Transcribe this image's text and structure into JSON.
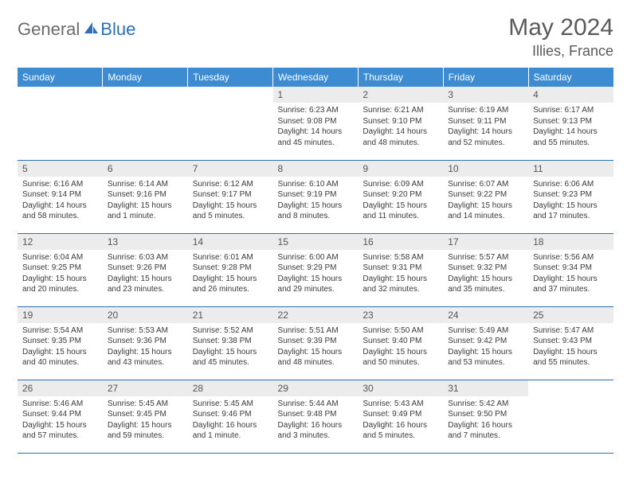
{
  "brand": {
    "general": "General",
    "blue": "Blue"
  },
  "title": "May 2024",
  "location": "Illies, France",
  "colors": {
    "header_bg": "#3d8cd1",
    "header_text": "#ffffff",
    "rule": "#2d6fb5",
    "daynum_bg": "#ececec",
    "text": "#3a3a3a",
    "title_text": "#5a5a5a",
    "logo_gray": "#6b6b6b",
    "logo_blue": "#2d6fb5",
    "background": "#ffffff"
  },
  "typography": {
    "month_title_pt": 30,
    "location_pt": 18,
    "dow_pt": 12,
    "daynum_pt": 12,
    "body_pt": 10
  },
  "days_of_week": [
    "Sunday",
    "Monday",
    "Tuesday",
    "Wednesday",
    "Thursday",
    "Friday",
    "Saturday"
  ],
  "weeks": [
    [
      null,
      null,
      null,
      {
        "n": "1",
        "sr": "Sunrise: 6:23 AM",
        "ss": "Sunset: 9:08 PM",
        "d1": "Daylight: 14 hours",
        "d2": "and 45 minutes."
      },
      {
        "n": "2",
        "sr": "Sunrise: 6:21 AM",
        "ss": "Sunset: 9:10 PM",
        "d1": "Daylight: 14 hours",
        "d2": "and 48 minutes."
      },
      {
        "n": "3",
        "sr": "Sunrise: 6:19 AM",
        "ss": "Sunset: 9:11 PM",
        "d1": "Daylight: 14 hours",
        "d2": "and 52 minutes."
      },
      {
        "n": "4",
        "sr": "Sunrise: 6:17 AM",
        "ss": "Sunset: 9:13 PM",
        "d1": "Daylight: 14 hours",
        "d2": "and 55 minutes."
      }
    ],
    [
      {
        "n": "5",
        "sr": "Sunrise: 6:16 AM",
        "ss": "Sunset: 9:14 PM",
        "d1": "Daylight: 14 hours",
        "d2": "and 58 minutes."
      },
      {
        "n": "6",
        "sr": "Sunrise: 6:14 AM",
        "ss": "Sunset: 9:16 PM",
        "d1": "Daylight: 15 hours",
        "d2": "and 1 minute."
      },
      {
        "n": "7",
        "sr": "Sunrise: 6:12 AM",
        "ss": "Sunset: 9:17 PM",
        "d1": "Daylight: 15 hours",
        "d2": "and 5 minutes."
      },
      {
        "n": "8",
        "sr": "Sunrise: 6:10 AM",
        "ss": "Sunset: 9:19 PM",
        "d1": "Daylight: 15 hours",
        "d2": "and 8 minutes."
      },
      {
        "n": "9",
        "sr": "Sunrise: 6:09 AM",
        "ss": "Sunset: 9:20 PM",
        "d1": "Daylight: 15 hours",
        "d2": "and 11 minutes."
      },
      {
        "n": "10",
        "sr": "Sunrise: 6:07 AM",
        "ss": "Sunset: 9:22 PM",
        "d1": "Daylight: 15 hours",
        "d2": "and 14 minutes."
      },
      {
        "n": "11",
        "sr": "Sunrise: 6:06 AM",
        "ss": "Sunset: 9:23 PM",
        "d1": "Daylight: 15 hours",
        "d2": "and 17 minutes."
      }
    ],
    [
      {
        "n": "12",
        "sr": "Sunrise: 6:04 AM",
        "ss": "Sunset: 9:25 PM",
        "d1": "Daylight: 15 hours",
        "d2": "and 20 minutes."
      },
      {
        "n": "13",
        "sr": "Sunrise: 6:03 AM",
        "ss": "Sunset: 9:26 PM",
        "d1": "Daylight: 15 hours",
        "d2": "and 23 minutes."
      },
      {
        "n": "14",
        "sr": "Sunrise: 6:01 AM",
        "ss": "Sunset: 9:28 PM",
        "d1": "Daylight: 15 hours",
        "d2": "and 26 minutes."
      },
      {
        "n": "15",
        "sr": "Sunrise: 6:00 AM",
        "ss": "Sunset: 9:29 PM",
        "d1": "Daylight: 15 hours",
        "d2": "and 29 minutes."
      },
      {
        "n": "16",
        "sr": "Sunrise: 5:58 AM",
        "ss": "Sunset: 9:31 PM",
        "d1": "Daylight: 15 hours",
        "d2": "and 32 minutes."
      },
      {
        "n": "17",
        "sr": "Sunrise: 5:57 AM",
        "ss": "Sunset: 9:32 PM",
        "d1": "Daylight: 15 hours",
        "d2": "and 35 minutes."
      },
      {
        "n": "18",
        "sr": "Sunrise: 5:56 AM",
        "ss": "Sunset: 9:34 PM",
        "d1": "Daylight: 15 hours",
        "d2": "and 37 minutes."
      }
    ],
    [
      {
        "n": "19",
        "sr": "Sunrise: 5:54 AM",
        "ss": "Sunset: 9:35 PM",
        "d1": "Daylight: 15 hours",
        "d2": "and 40 minutes."
      },
      {
        "n": "20",
        "sr": "Sunrise: 5:53 AM",
        "ss": "Sunset: 9:36 PM",
        "d1": "Daylight: 15 hours",
        "d2": "and 43 minutes."
      },
      {
        "n": "21",
        "sr": "Sunrise: 5:52 AM",
        "ss": "Sunset: 9:38 PM",
        "d1": "Daylight: 15 hours",
        "d2": "and 45 minutes."
      },
      {
        "n": "22",
        "sr": "Sunrise: 5:51 AM",
        "ss": "Sunset: 9:39 PM",
        "d1": "Daylight: 15 hours",
        "d2": "and 48 minutes."
      },
      {
        "n": "23",
        "sr": "Sunrise: 5:50 AM",
        "ss": "Sunset: 9:40 PM",
        "d1": "Daylight: 15 hours",
        "d2": "and 50 minutes."
      },
      {
        "n": "24",
        "sr": "Sunrise: 5:49 AM",
        "ss": "Sunset: 9:42 PM",
        "d1": "Daylight: 15 hours",
        "d2": "and 53 minutes."
      },
      {
        "n": "25",
        "sr": "Sunrise: 5:47 AM",
        "ss": "Sunset: 9:43 PM",
        "d1": "Daylight: 15 hours",
        "d2": "and 55 minutes."
      }
    ],
    [
      {
        "n": "26",
        "sr": "Sunrise: 5:46 AM",
        "ss": "Sunset: 9:44 PM",
        "d1": "Daylight: 15 hours",
        "d2": "and 57 minutes."
      },
      {
        "n": "27",
        "sr": "Sunrise: 5:45 AM",
        "ss": "Sunset: 9:45 PM",
        "d1": "Daylight: 15 hours",
        "d2": "and 59 minutes."
      },
      {
        "n": "28",
        "sr": "Sunrise: 5:45 AM",
        "ss": "Sunset: 9:46 PM",
        "d1": "Daylight: 16 hours",
        "d2": "and 1 minute."
      },
      {
        "n": "29",
        "sr": "Sunrise: 5:44 AM",
        "ss": "Sunset: 9:48 PM",
        "d1": "Daylight: 16 hours",
        "d2": "and 3 minutes."
      },
      {
        "n": "30",
        "sr": "Sunrise: 5:43 AM",
        "ss": "Sunset: 9:49 PM",
        "d1": "Daylight: 16 hours",
        "d2": "and 5 minutes."
      },
      {
        "n": "31",
        "sr": "Sunrise: 5:42 AM",
        "ss": "Sunset: 9:50 PM",
        "d1": "Daylight: 16 hours",
        "d2": "and 7 minutes."
      },
      null
    ]
  ]
}
